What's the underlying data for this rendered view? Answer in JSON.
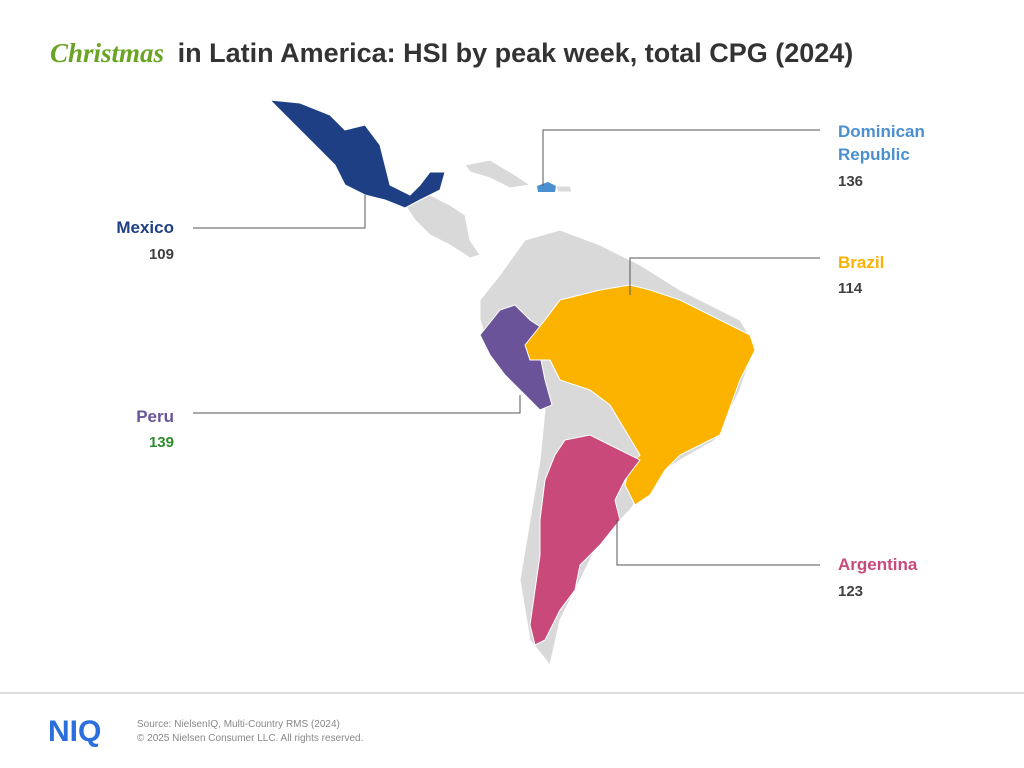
{
  "title": {
    "highlight": "Christmas",
    "text": "in Latin America: HSI by peak week, total CPG (2024)"
  },
  "regions": [
    {
      "name": "Mexico",
      "value": 109,
      "color": "#1f3f84",
      "value_color": "#404040"
    },
    {
      "name": "Dominican Republic",
      "value": 136,
      "color": "#4a90d0",
      "value_color": "#404040"
    },
    {
      "name": "Brazil",
      "value": 114,
      "color": "#fbb300",
      "value_color": "#404040"
    },
    {
      "name": "Peru",
      "value": 139,
      "color": "#6a5398",
      "value_color": "#2e8b2e"
    },
    {
      "name": "Argentina",
      "value": 123,
      "color": "#c8497a",
      "value_color": "#404040"
    }
  ],
  "footer": {
    "logo": "NIQ",
    "source": "Source: NielsenIQ, Multi-Country RMS (2024)",
    "copyright": "© 2025 Nielsen Consumer LLC. All rights reserved."
  }
}
